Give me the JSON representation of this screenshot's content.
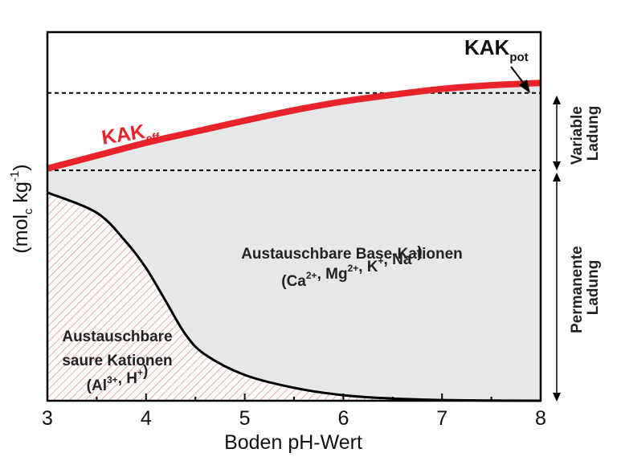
{
  "chart_data": {
    "type": "area",
    "xlabel": "Boden pH-Wert",
    "ylabel": "(mol_c kg^-1)",
    "ylabel_parts": {
      "open": "(mol",
      "sub": "c",
      "mid": " kg",
      "sup": "-1",
      "close": ")"
    },
    "xlim": [
      3,
      8
    ],
    "ylim": [
      0,
      100
    ],
    "x_ticks": [
      3,
      4,
      5,
      6,
      7,
      8
    ],
    "x_tick_labels": [
      "3",
      "4",
      "5",
      "6",
      "7",
      "8"
    ],
    "kak_eff_label": {
      "main": "KAK",
      "sub": "eff"
    },
    "kak_pot_label": {
      "main": "KAK",
      "sub": "pot"
    },
    "kak_eff_curve": {
      "x": [
        3,
        3.5,
        4,
        4.5,
        5,
        5.5,
        6,
        6.5,
        7,
        7.5,
        8
      ],
      "y": [
        63,
        66.5,
        70,
        73,
        76,
        78.8,
        81.2,
        83,
        84.6,
        85.6,
        86.2
      ]
    },
    "kak_pot_level": 83.5,
    "permanent_charge_level": 62.5,
    "acid_cations_curve": {
      "x": [
        3,
        3.5,
        3.8,
        4,
        4.2,
        4.4,
        4.6,
        5,
        5.5,
        6,
        6.5,
        7,
        7.5,
        8
      ],
      "y": [
        56.5,
        51,
        43,
        36,
        27,
        18,
        12.5,
        7,
        3.5,
        1.5,
        0.6,
        0.2,
        0.05,
        0
      ]
    },
    "regions": {
      "base": {
        "line1": "Austauschbare Base-Kationen",
        "ions": [
          {
            "t": "(Ca",
            "sup": "2+"
          },
          {
            "t": ", Mg",
            "sup": "2+"
          },
          {
            "t": ", K",
            "sup": "+"
          },
          {
            "t": ", Na",
            "sup": "+"
          },
          {
            "t": ")",
            "sup": ""
          }
        ]
      },
      "acid": {
        "line1": "Austauschbare",
        "line2": "saure Kationen",
        "ions": [
          {
            "t": "(Al",
            "sup": "3+"
          },
          {
            "t": ", H",
            "sup": "+"
          },
          {
            "t": ")",
            "sup": ""
          }
        ]
      }
    },
    "right_labels": {
      "variable": [
        "Variable",
        "Ladung"
      ],
      "permanent": [
        "Permanente",
        "Ladung"
      ]
    },
    "colors": {
      "kak_eff": "#e8242a",
      "base_fill": "#e6e7e9",
      "acid_hatch": "#d98a7e",
      "line": "#000000"
    }
  }
}
